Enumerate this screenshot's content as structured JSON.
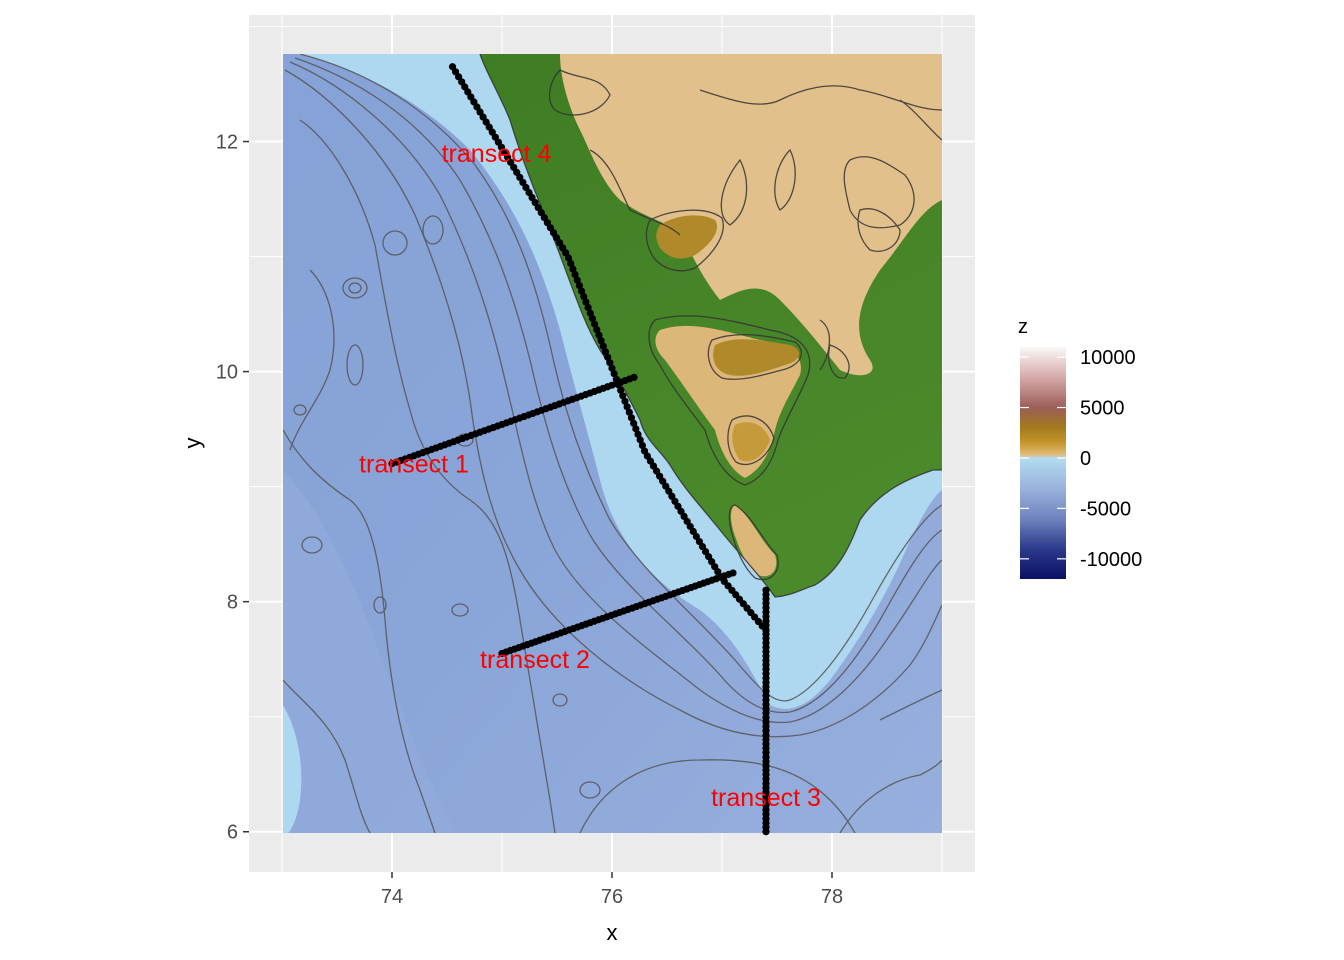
{
  "chart_data": {
    "type": "heatmap",
    "title": "",
    "xlabel": "x",
    "ylabel": "y",
    "xlim": [
      72.7,
      79.3
    ],
    "ylim": [
      5.65,
      13.1
    ],
    "x_ticks": [
      "74",
      "76",
      "78"
    ],
    "y_ticks": [
      "6",
      "8",
      "10",
      "12"
    ],
    "grid": true,
    "colors": {
      "panel_background": "#ebebeb",
      "grid": "#ffffff",
      "deep_ocean": "#8fa6d8",
      "shelf": "#aed7f0",
      "lowland": "#3d7a24",
      "highland": "#e2c08c",
      "contour": "#555555",
      "transect_points": "#000000",
      "transect_labels": "#ff0000"
    },
    "transects": [
      {
        "label": "transect 1",
        "start": [
          74.0,
          9.2
        ],
        "end": [
          76.2,
          9.95
        ],
        "label_pos": [
          74.2,
          9.2
        ]
      },
      {
        "label": "transect 2",
        "start": [
          75.0,
          7.55
        ],
        "end": [
          77.1,
          8.25
        ],
        "label_pos": [
          75.3,
          7.5
        ]
      },
      {
        "label": "transect 3",
        "start": [
          77.4,
          8.1
        ],
        "end": [
          77.4,
          6.0
        ],
        "label_pos": [
          77.4,
          6.3
        ]
      },
      {
        "label": "transect 4",
        "path": [
          [
            74.55,
            12.65
          ],
          [
            75.6,
            11.0
          ],
          [
            76.3,
            9.3
          ],
          [
            77.0,
            8.2
          ],
          [
            77.4,
            7.75
          ]
        ],
        "label_pos": [
          74.95,
          11.9
        ]
      }
    ],
    "legend": {
      "title": "z",
      "position": "right",
      "breaks": [
        "10000",
        "5000",
        "0",
        "-5000",
        "-10000"
      ],
      "range": [
        -12000,
        11000
      ],
      "gradient": [
        {
          "value": -12000,
          "color": "#0a1064"
        },
        {
          "value": -9000,
          "color": "#2c3a8c"
        },
        {
          "value": -6000,
          "color": "#6f84bf"
        },
        {
          "value": -3000,
          "color": "#9ab2dc"
        },
        {
          "value": 0,
          "color": "#b2dcf0"
        },
        {
          "value": 300,
          "color": "#e0bd7e"
        },
        {
          "value": 1500,
          "color": "#c8962c"
        },
        {
          "value": 3000,
          "color": "#a27a1c"
        },
        {
          "value": 5000,
          "color": "#9c5e58"
        },
        {
          "value": 8000,
          "color": "#d6aaaa"
        },
        {
          "value": 11000,
          "color": "#fbf8f8"
        }
      ]
    }
  }
}
